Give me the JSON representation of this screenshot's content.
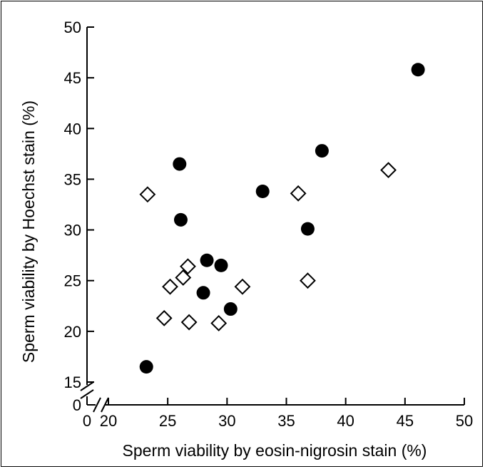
{
  "chart_data": {
    "type": "scatter",
    "xlabel": "Sperm viability by eosin-nigrosin stain (%)",
    "ylabel": "Sperm viability by Hoechst stain (%)",
    "xlim": [
      20,
      50
    ],
    "ylim": [
      15,
      50
    ],
    "x_ticks": [
      "20",
      "25",
      "30",
      "35",
      "40",
      "45",
      "50"
    ],
    "y_ticks": [
      "15",
      "20",
      "25",
      "30",
      "35",
      "40",
      "45",
      "50"
    ],
    "x_zero_label": "0",
    "y_zero_label": "0",
    "axis_break": true,
    "grid": false,
    "legend": false,
    "series": [
      {
        "marker": "filled-circle",
        "color": "#000000",
        "points": [
          {
            "x": 23.2,
            "y": 16.5
          },
          {
            "x": 26.0,
            "y": 36.5
          },
          {
            "x": 26.1,
            "y": 31.0
          },
          {
            "x": 28.0,
            "y": 23.8
          },
          {
            "x": 28.3,
            "y": 27.0
          },
          {
            "x": 29.5,
            "y": 26.5
          },
          {
            "x": 30.3,
            "y": 22.2
          },
          {
            "x": 33.0,
            "y": 33.8
          },
          {
            "x": 36.8,
            "y": 30.1
          },
          {
            "x": 38.0,
            "y": 37.8
          },
          {
            "x": 46.1,
            "y": 45.8
          }
        ]
      },
      {
        "marker": "open-diamond",
        "color": "#000000",
        "points": [
          {
            "x": 23.3,
            "y": 33.5
          },
          {
            "x": 24.7,
            "y": 21.3
          },
          {
            "x": 25.2,
            "y": 24.4
          },
          {
            "x": 26.3,
            "y": 25.3
          },
          {
            "x": 26.7,
            "y": 26.4
          },
          {
            "x": 26.8,
            "y": 20.9
          },
          {
            "x": 29.3,
            "y": 20.8
          },
          {
            "x": 31.3,
            "y": 24.4
          },
          {
            "x": 36.0,
            "y": 33.6
          },
          {
            "x": 36.8,
            "y": 25.0
          },
          {
            "x": 43.6,
            "y": 35.9
          }
        ]
      }
    ]
  }
}
